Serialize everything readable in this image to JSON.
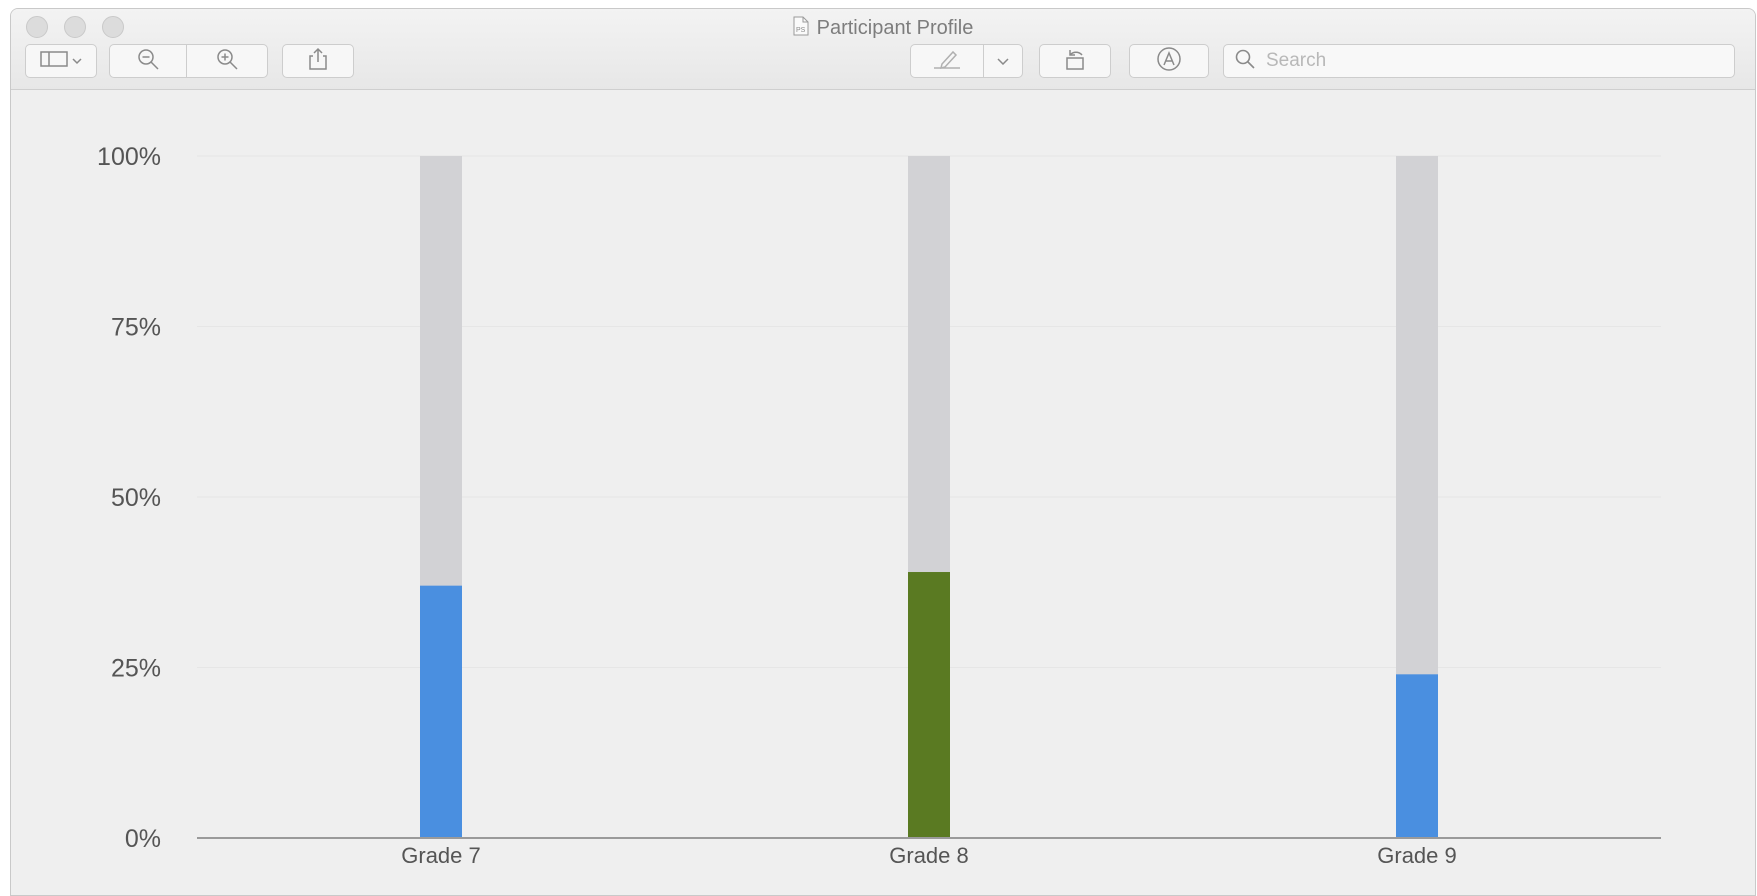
{
  "window": {
    "title": "Participant Profile"
  },
  "toolbar": {
    "icons": [
      "sidebar-icon",
      "chevron-down-icon",
      "zoom-out-icon",
      "zoom-in-icon",
      "share-icon",
      "markup-pen-icon",
      "chevron-down-icon",
      "rotate-icon",
      "annotate-icon",
      "search-icon"
    ],
    "search_placeholder": "Search"
  },
  "colors": {
    "blue": "#4a8fe0",
    "green": "#5a7a22",
    "track": "#d2d2d5",
    "background": "#efefef"
  },
  "chart_data": {
    "type": "bar",
    "categories": [
      "Grade 7",
      "Grade 8",
      "Grade 9"
    ],
    "values": [
      37,
      39,
      24
    ],
    "bar_colors": [
      "#4a8fe0",
      "#5a7a22",
      "#4a8fe0"
    ],
    "track_max": 100,
    "ylim": [
      0,
      100
    ],
    "yticks": [
      0,
      25,
      50,
      75,
      100
    ],
    "ytick_labels": [
      "0%",
      "25%",
      "50%",
      "75%",
      "100%"
    ],
    "grid": true
  }
}
